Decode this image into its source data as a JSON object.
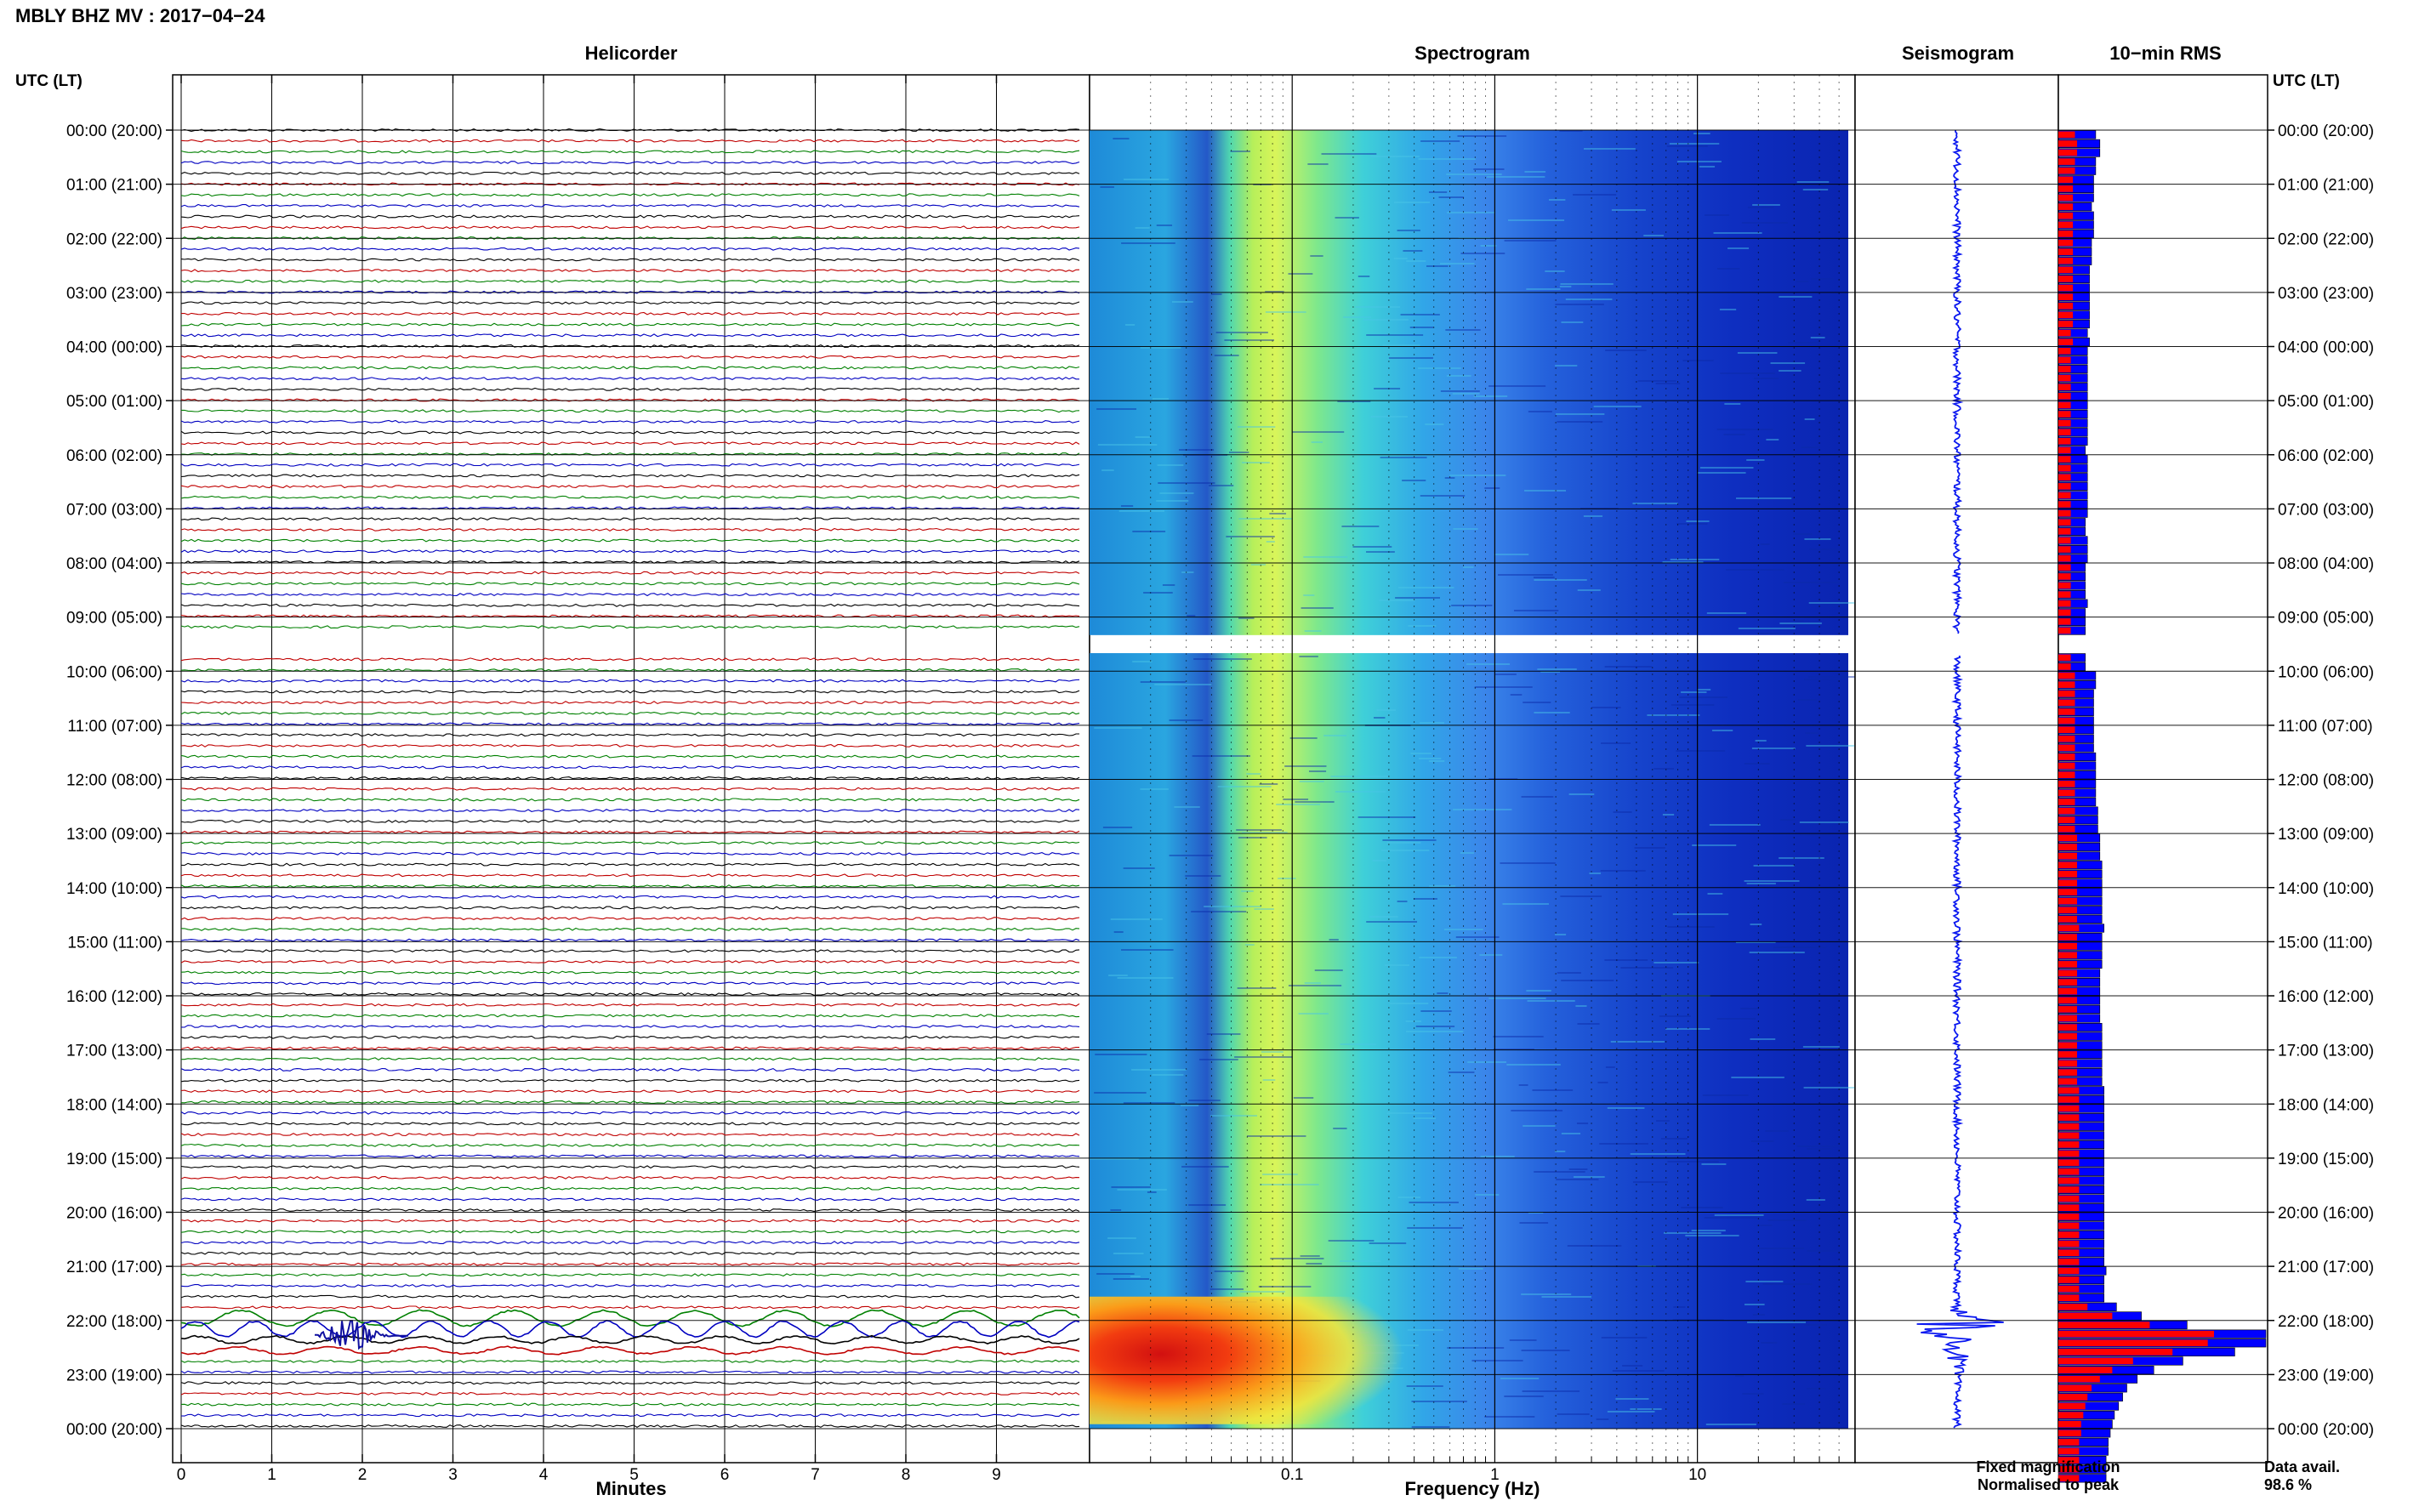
{
  "title": "MBLY BHZ MV : 2017−04−24",
  "left_axis_label": "UTC (LT)",
  "right_axis_label": "UTC (LT)",
  "panels": {
    "helicorder": "Helicorder",
    "spectrogram": "Spectrogram",
    "seismogram": "Seismogram",
    "rms": "10−min RMS"
  },
  "hour_labels": [
    "00:00 (20:00)",
    "01:00 (21:00)",
    "02:00 (22:00)",
    "03:00 (23:00)",
    "04:00 (00:00)",
    "05:00 (01:00)",
    "06:00 (02:00)",
    "07:00 (03:00)",
    "08:00 (04:00)",
    "09:00 (05:00)",
    "10:00 (06:00)",
    "11:00 (07:00)",
    "12:00 (08:00)",
    "13:00 (09:00)",
    "14:00 (10:00)",
    "15:00 (11:00)",
    "16:00 (12:00)",
    "17:00 (13:00)",
    "18:00 (14:00)",
    "19:00 (15:00)",
    "20:00 (16:00)",
    "21:00 (17:00)",
    "22:00 (18:00)",
    "23:00 (19:00)",
    "00:00 (20:00)"
  ],
  "helicorder": {
    "xlabel": "Minutes",
    "ticks": [
      "0",
      "1",
      "2",
      "3",
      "4",
      "5",
      "6",
      "7",
      "8",
      "9"
    ],
    "trace_colors": [
      "#000000",
      "#c00000",
      "#008000",
      "#0000c0"
    ]
  },
  "spectrogram": {
    "xlabel": "Frequency (Hz)",
    "tick_labels": [
      "0.1",
      "1",
      "10"
    ],
    "tick_values": [
      0.1,
      1,
      10
    ],
    "freq_range_hz": [
      0.01,
      60
    ],
    "scale": "log",
    "data_gap_utc": [
      "09:20",
      "09:40"
    ]
  },
  "legend": {
    "fixed": "Fixed magnification",
    "normalised": "Normalised to peak",
    "fixed_color": "#0000ff",
    "normalised_color": "#ff0000"
  },
  "data_avail_label": "Data avail.",
  "data_avail_value": "98.6 %",
  "chart_data": {
    "type": "helicorder",
    "station": "MBLY BHZ MV",
    "date": "2017-04-24",
    "time_range_utc": [
      "00:00",
      "24:00"
    ],
    "event_utc": "22:00",
    "data_gap_utc": [
      "09:20",
      "09:40"
    ],
    "rms_10min": {
      "unit": "relative (fraction of panel width)",
      "blue_fixed_magnification": [
        0.18,
        0.2,
        0.2,
        0.18,
        0.18,
        0.17,
        0.17,
        0.17,
        0.16,
        0.17,
        0.17,
        0.17,
        0.16,
        0.16,
        0.16,
        0.15,
        0.15,
        0.15,
        0.15,
        0.15,
        0.15,
        0.15,
        0.14,
        0.15,
        0.14,
        0.14,
        0.14,
        0.14,
        0.14,
        0.14,
        0.14,
        0.14,
        0.14,
        0.14,
        0.14,
        0.13,
        0.14,
        0.14,
        0.14,
        0.14,
        0.14,
        0.14,
        0.14,
        0.13,
        0.13,
        0.14,
        0.14,
        0.14,
        0.13,
        0.13,
        0.13,
        0.13,
        0.14,
        0.13,
        0.13,
        0.13,
        null,
        null,
        0.13,
        0.13,
        0.18,
        0.18,
        0.17,
        0.17,
        0.17,
        0.17,
        0.17,
        0.17,
        0.17,
        0.18,
        0.18,
        0.18,
        0.18,
        0.18,
        0.18,
        0.19,
        0.19,
        0.19,
        0.2,
        0.2,
        0.2,
        0.21,
        0.21,
        0.21,
        0.21,
        0.21,
        0.21,
        0.21,
        0.22,
        0.21,
        0.21,
        0.21,
        0.21,
        0.2,
        0.2,
        0.2,
        0.2,
        0.2,
        0.2,
        0.21,
        0.21,
        0.21,
        0.21,
        0.21,
        0.21,
        0.21,
        0.22,
        0.22,
        0.22,
        0.22,
        0.22,
        0.22,
        0.22,
        0.22,
        0.22,
        0.22,
        0.22,
        0.22,
        0.22,
        0.22,
        0.22,
        0.22,
        0.22,
        0.22,
        0.22,
        0.22,
        0.23,
        0.22,
        0.22,
        0.22,
        0.28,
        0.4,
        0.62,
        1.0,
        1.0,
        0.85,
        0.6,
        0.46,
        0.38,
        0.33,
        0.31,
        0.29,
        0.27,
        0.26,
        0.25,
        0.24,
        0.24,
        0.23,
        0.23,
        0.23
      ],
      "red_normalised_to_peak": [
        0.08,
        0.09,
        0.09,
        0.08,
        0.08,
        0.07,
        0.07,
        0.07,
        0.07,
        0.07,
        0.07,
        0.07,
        0.07,
        0.07,
        0.07,
        0.07,
        0.07,
        0.07,
        0.07,
        0.07,
        0.07,
        0.07,
        0.06,
        0.07,
        0.06,
        0.06,
        0.06,
        0.06,
        0.06,
        0.06,
        0.06,
        0.06,
        0.06,
        0.06,
        0.06,
        0.06,
        0.06,
        0.06,
        0.06,
        0.06,
        0.06,
        0.06,
        0.06,
        0.06,
        0.06,
        0.06,
        0.06,
        0.06,
        0.06,
        0.06,
        0.06,
        0.06,
        0.06,
        0.06,
        0.06,
        0.06,
        null,
        null,
        0.06,
        0.06,
        0.08,
        0.08,
        0.08,
        0.08,
        0.08,
        0.08,
        0.08,
        0.08,
        0.08,
        0.08,
        0.08,
        0.08,
        0.08,
        0.08,
        0.08,
        0.08,
        0.08,
        0.08,
        0.09,
        0.09,
        0.09,
        0.09,
        0.09,
        0.09,
        0.09,
        0.09,
        0.09,
        0.09,
        0.1,
        0.09,
        0.09,
        0.09,
        0.09,
        0.09,
        0.09,
        0.09,
        0.09,
        0.09,
        0.09,
        0.09,
        0.09,
        0.09,
        0.09,
        0.09,
        0.09,
        0.09,
        0.1,
        0.1,
        0.1,
        0.1,
        0.1,
        0.1,
        0.1,
        0.1,
        0.1,
        0.1,
        0.1,
        0.1,
        0.1,
        0.1,
        0.1,
        0.1,
        0.1,
        0.1,
        0.1,
        0.1,
        0.1,
        0.1,
        0.1,
        0.1,
        0.14,
        0.26,
        0.44,
        0.75,
        0.72,
        0.55,
        0.36,
        0.26,
        0.2,
        0.16,
        0.14,
        0.13,
        0.12,
        0.11,
        0.11,
        0.1,
        0.1,
        0.1,
        0.1,
        0.1
      ]
    },
    "data_availability_percent": 98.6
  }
}
